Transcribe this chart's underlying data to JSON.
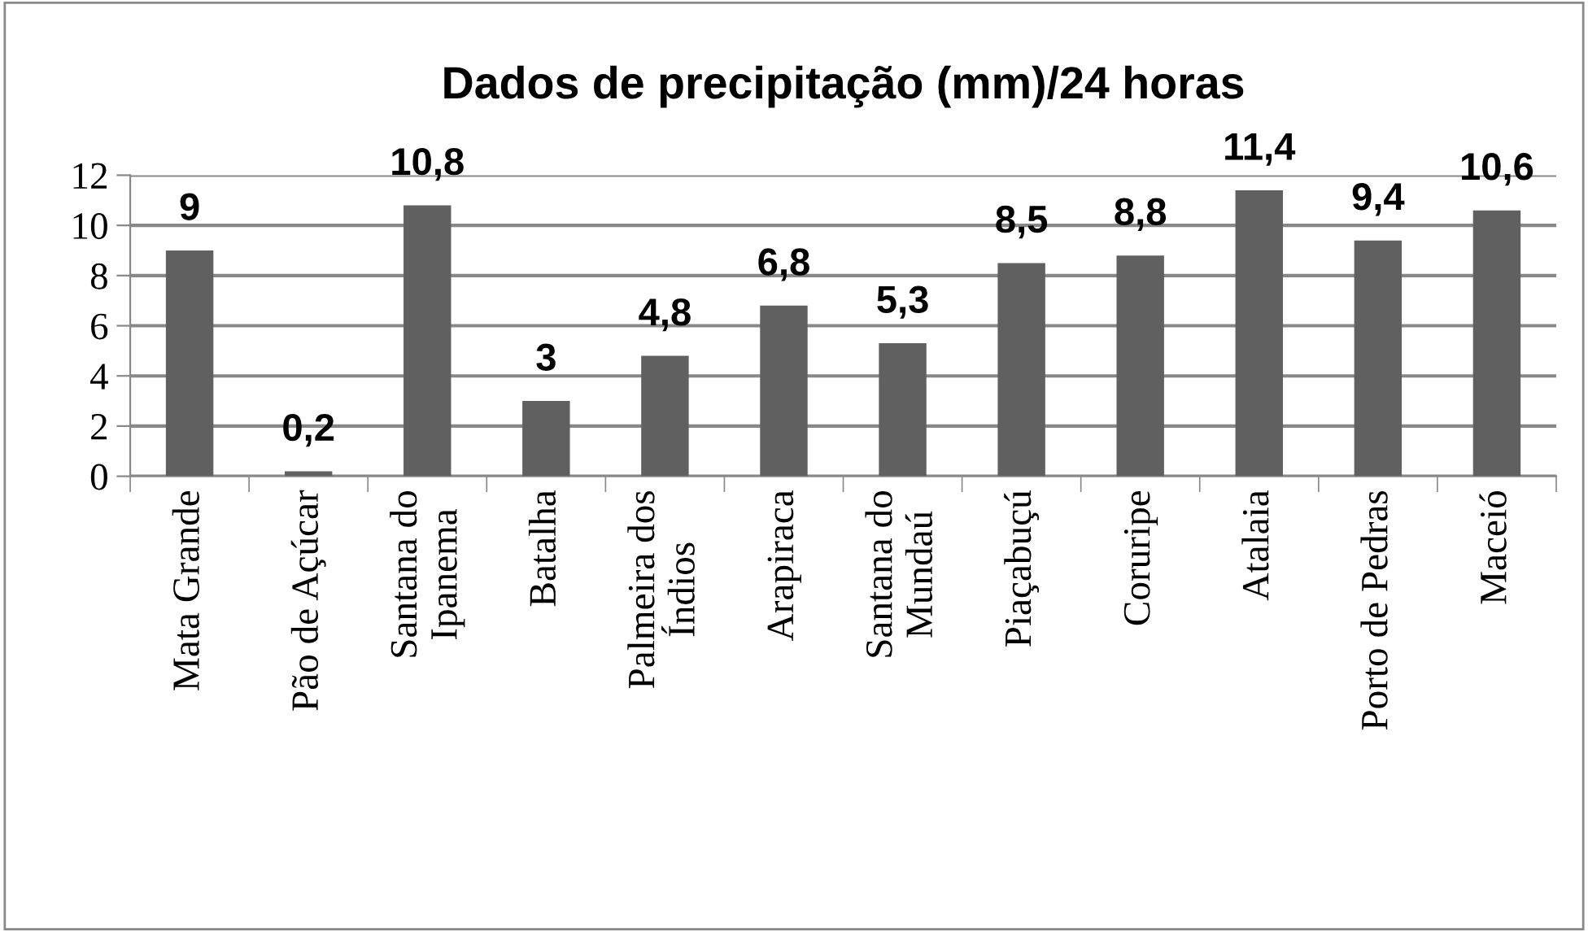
{
  "chart_data": {
    "type": "bar",
    "title": "Dados de precipitação (mm)/24 horas",
    "categories": [
      "Mata Grande",
      "Pão de Açúcar",
      "Santana do\nIpanema",
      "Batalha",
      "Palmeira dos\nÍndios",
      "Arapiraca",
      "Santana do\nMundaú",
      "Piaçabuçú",
      "Coruripe",
      "Atalaia",
      "Porto de Pedras",
      "Maceió"
    ],
    "values": [
      9,
      0.2,
      10.8,
      3,
      4.8,
      6.8,
      5.3,
      8.5,
      8.8,
      11.4,
      9.4,
      10.6
    ],
    "value_labels": [
      "9",
      "0,2",
      "10,8",
      "3",
      "4,8",
      "6,8",
      "5,3",
      "8,5",
      "8,8",
      "11,4",
      "9,4",
      "10,6"
    ],
    "color": "#606060",
    "ylim": [
      0,
      12
    ],
    "yticks": [
      0,
      2,
      4,
      6,
      8,
      10,
      12
    ],
    "grid": "y"
  }
}
